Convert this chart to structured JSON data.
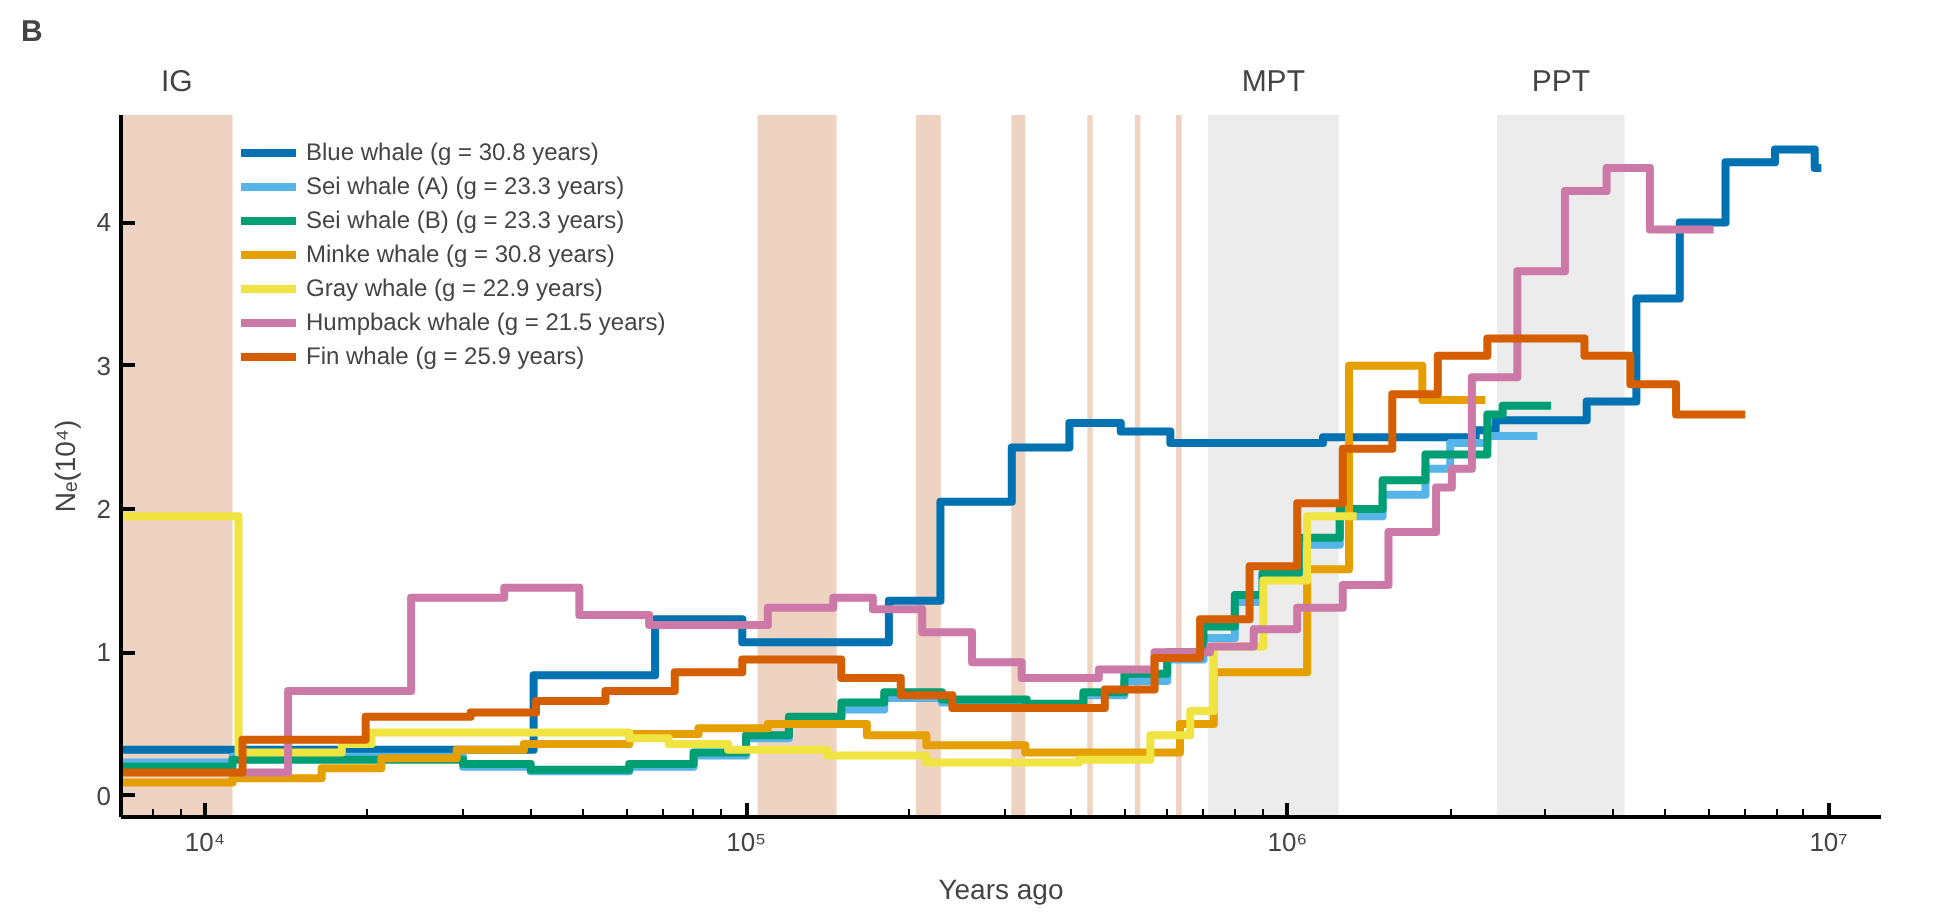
{
  "chart_data": {
    "type": "step",
    "title": "B",
    "xlabel": "Years ago",
    "ylabel": "Nₑ(10⁴)",
    "log": "x",
    "grid": false,
    "legend": "top left",
    "xlim": [
      7000,
      12500000
    ],
    "ylim": [
      -0.15,
      4.75
    ],
    "xticks": [
      {
        "value": 10000,
        "label": "10⁴"
      },
      {
        "value": 100000,
        "label": "10⁵"
      },
      {
        "value": 1000000,
        "label": "10⁶"
      },
      {
        "value": 10000000,
        "label": "10⁷"
      }
    ],
    "yticks": [
      0,
      1,
      2,
      3,
      4
    ],
    "bands": [
      {
        "axis": "x",
        "from": 7000,
        "to": 11250,
        "label": "IG",
        "color": "#efd3c2"
      },
      {
        "axis": "x",
        "from": 105000,
        "to": 147000,
        "label": null,
        "color": "#efd3c2"
      },
      {
        "axis": "x",
        "from": 206000,
        "to": 229000,
        "label": null,
        "color": "#efd3c2"
      },
      {
        "axis": "x",
        "from": 309000,
        "to": 328000,
        "label": null,
        "color": "#efd3c2"
      },
      {
        "axis": "x",
        "from": 427000,
        "to": 437000,
        "label": null,
        "color": "#efd3c2"
      },
      {
        "axis": "x",
        "from": 523000,
        "to": 535000,
        "label": null,
        "color": "#efd3c2"
      },
      {
        "axis": "x",
        "from": 623000,
        "to": 638000,
        "label": null,
        "color": "#efd3c2"
      },
      {
        "axis": "x",
        "from": 713000,
        "to": 1245000,
        "label": "MPT",
        "color": "#ececec"
      },
      {
        "axis": "x",
        "from": 2440000,
        "to": 4200000,
        "label": "PPT",
        "color": "#ececec"
      }
    ],
    "series": [
      {
        "name": "Blue whale (g = 30.8 years)",
        "color": "#0072b2",
        "x": [
          7000,
          40500,
          67900,
          98400,
          183600,
          228600,
          309700,
          395700,
          492400,
          608000,
          1164000,
          2229000,
          2426000,
          3574000,
          4415000,
          5311000,
          6451000,
          7963000,
          9428000,
          9700000
        ],
        "values": [
          0.32,
          0.84,
          1.23,
          1.07,
          1.36,
          2.05,
          2.43,
          2.6,
          2.54,
          2.46,
          2.5,
          2.55,
          2.62,
          2.75,
          3.47,
          4.0,
          4.42,
          4.51,
          4.38,
          4.38
        ]
      },
      {
        "name": "Sei whale (A) (g = 23.3 years)",
        "color": "#56b4e9",
        "x": [
          7000,
          11250,
          30000,
          40000,
          60840,
          80000,
          100000,
          120000,
          150000,
          180000,
          230000,
          330000,
          420000,
          500000,
          600000,
          700000,
          800000,
          900000,
          1050000,
          1250000,
          1500000,
          1800000,
          2000000,
          2342000,
          2897000
        ],
        "values": [
          0.23,
          0.27,
          0.2,
          0.17,
          0.2,
          0.28,
          0.4,
          0.52,
          0.6,
          0.68,
          0.65,
          0.62,
          0.7,
          0.8,
          0.95,
          1.1,
          1.35,
          1.55,
          1.75,
          1.95,
          2.1,
          2.28,
          2.46,
          2.51,
          2.51
        ]
      },
      {
        "name": "Sei whale (B) (g = 23.3 years)",
        "color": "#009e73",
        "x": [
          7000,
          11250,
          30000,
          40000,
          60840,
          80000,
          100000,
          120000,
          150000,
          180000,
          230000,
          330000,
          420000,
          500000,
          600000,
          700000,
          800000,
          900000,
          1050000,
          1250000,
          1500000,
          1800000,
          2342000,
          2500000,
          3070000
        ],
        "values": [
          0.2,
          0.25,
          0.22,
          0.18,
          0.22,
          0.3,
          0.42,
          0.55,
          0.65,
          0.72,
          0.67,
          0.64,
          0.72,
          0.85,
          1.0,
          1.18,
          1.4,
          1.55,
          1.8,
          2.0,
          2.2,
          2.38,
          2.66,
          2.72,
          2.72
        ]
      },
      {
        "name": "Minke whale (g = 30.8 years)",
        "color": "#e69f00",
        "x": [
          7000,
          11250,
          16440,
          21180,
          29190,
          38870,
          60840,
          81680,
          109700,
          167200,
          215300,
          328000,
          633400,
          731400,
          1088000,
          1300000,
          1776000,
          2323000
        ],
        "values": [
          0.09,
          0.12,
          0.19,
          0.26,
          0.32,
          0.36,
          0.43,
          0.47,
          0.5,
          0.42,
          0.35,
          0.3,
          0.5,
          0.86,
          1.58,
          3.0,
          2.76,
          2.76
        ]
      },
      {
        "name": "Gray whale (g = 22.9 years)",
        "color": "#f0e442",
        "x": [
          7000,
          11540,
          17910,
          20320,
          60840,
          71950,
          92650,
          141200,
          215300,
          412000,
          558500,
          661600,
          731400,
          903000,
          1088000,
          1343000
        ],
        "values": [
          1.95,
          0.3,
          0.36,
          0.44,
          0.4,
          0.36,
          0.32,
          0.28,
          0.23,
          0.25,
          0.42,
          0.59,
          1.04,
          1.5,
          1.95,
          1.95
        ]
      },
      {
        "name": "Humpback whale (g = 21.5 years)",
        "color": "#cc79a7",
        "x": [
          11540,
          14250,
          24050,
          35750,
          49200,
          66200,
          109700,
          144900,
          171500,
          211600,
          261500,
          323000,
          448500,
          568500,
          719800,
          867000,
          1043000,
          1266000,
          1538000,
          1883000,
          2014000,
          2193000,
          2661000,
          3258000,
          3890000,
          4677000,
          6133000
        ],
        "values": [
          0.16,
          0.73,
          1.38,
          1.45,
          1.26,
          1.19,
          1.31,
          1.38,
          1.3,
          1.14,
          0.93,
          0.82,
          0.88,
          1.0,
          1.04,
          1.16,
          1.31,
          1.47,
          1.84,
          2.15,
          2.28,
          2.92,
          3.66,
          4.22,
          4.38,
          3.95,
          3.95
        ]
      },
      {
        "name": "Fin whale (g = 25.9 years)",
        "color": "#d55e00",
        "x": [
          7000,
          11740,
          19820,
          30980,
          40920,
          54980,
          73830,
          98400,
          149900,
          193100,
          240500,
          460000,
          568500,
          690000,
          851700,
          1043000,
          1266000,
          1563000,
          1897000,
          2342000,
          3540000,
          4303000,
          5227000,
          7015000
        ],
        "values": [
          0.16,
          0.39,
          0.55,
          0.58,
          0.66,
          0.73,
          0.86,
          0.95,
          0.82,
          0.7,
          0.61,
          0.74,
          0.96,
          1.23,
          1.6,
          2.04,
          2.42,
          2.8,
          3.07,
          3.19,
          3.07,
          2.87,
          2.66,
          2.66
        ]
      }
    ]
  }
}
